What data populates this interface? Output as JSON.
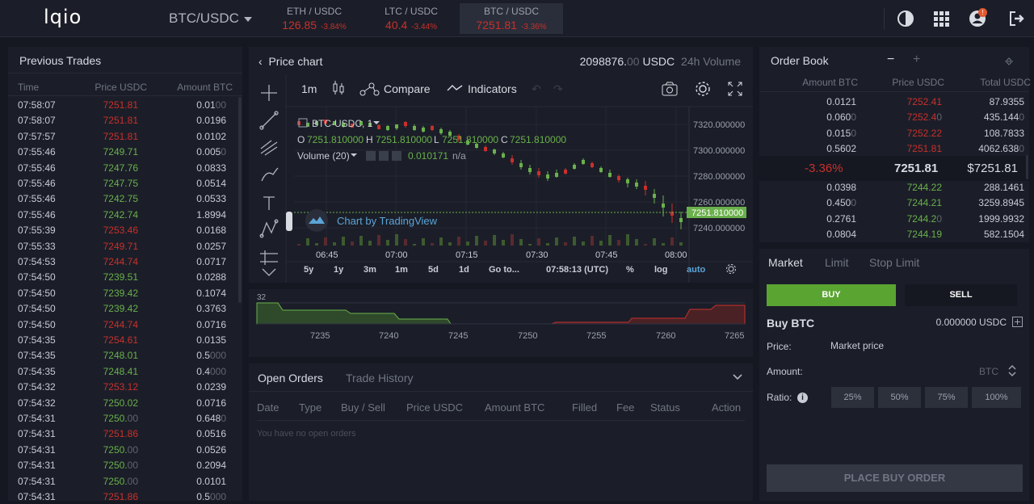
{
  "header": {
    "logo": "lqio",
    "pair": "BTC/USDC",
    "markets": [
      {
        "name": "ETH / USDC",
        "price": "126.85",
        "change": "-3.84%"
      },
      {
        "name": "LTC / USDC",
        "price": "40.4",
        "change": "-3.44%"
      },
      {
        "name": "BTC / USDC",
        "price": "7251.81",
        "change": "-3.36%"
      }
    ],
    "notification_count": "!"
  },
  "trades": {
    "title": "Previous Trades",
    "headers": [
      "Time",
      "Price USDC",
      "Amount BTC"
    ],
    "rows": [
      {
        "time": "07:58:07",
        "price": "7251.81",
        "dir": "red",
        "amt": "0.01",
        "amt_dim": "00"
      },
      {
        "time": "07:58:07",
        "price": "7251.81",
        "dir": "red",
        "amt": "0.0196",
        "amt_dim": ""
      },
      {
        "time": "07:57:57",
        "price": "7251.81",
        "dir": "red",
        "amt": "0.0102",
        "amt_dim": ""
      },
      {
        "time": "07:55:46",
        "price": "7249.71",
        "dir": "green",
        "amt": "0.005",
        "amt_dim": "0"
      },
      {
        "time": "07:55:46",
        "price": "7247.76",
        "dir": "green",
        "amt": "0.0833",
        "amt_dim": ""
      },
      {
        "time": "07:55:46",
        "price": "7247.75",
        "dir": "green",
        "amt": "0.0514",
        "amt_dim": ""
      },
      {
        "time": "07:55:46",
        "price": "7242.75",
        "dir": "green",
        "amt": "0.0533",
        "amt_dim": ""
      },
      {
        "time": "07:55:46",
        "price": "7242.74",
        "dir": "green",
        "amt": "1.8994",
        "amt_dim": ""
      },
      {
        "time": "07:55:39",
        "price": "7253.46",
        "dir": "red",
        "amt": "0.0168",
        "amt_dim": ""
      },
      {
        "time": "07:55:33",
        "price": "7249.71",
        "dir": "red",
        "amt": "0.0257",
        "amt_dim": ""
      },
      {
        "time": "07:54:53",
        "price": "7244.74",
        "dir": "red",
        "amt": "0.0717",
        "amt_dim": ""
      },
      {
        "time": "07:54:50",
        "price": "7239.51",
        "dir": "green",
        "amt": "0.0288",
        "amt_dim": ""
      },
      {
        "time": "07:54:50",
        "price": "7239.42",
        "dir": "green",
        "amt": "0.1074",
        "amt_dim": ""
      },
      {
        "time": "07:54:50",
        "price": "7239.42",
        "dir": "green",
        "amt": "0.3763",
        "amt_dim": ""
      },
      {
        "time": "07:54:50",
        "price": "7244.74",
        "dir": "red",
        "amt": "0.0716",
        "amt_dim": ""
      },
      {
        "time": "07:54:35",
        "price": "7254.61",
        "dir": "red",
        "amt": "0.0135",
        "amt_dim": ""
      },
      {
        "time": "07:54:35",
        "price": "7248.01",
        "dir": "green",
        "amt": "0.5",
        "amt_dim": "000"
      },
      {
        "time": "07:54:35",
        "price": "7248.41",
        "dir": "green",
        "amt": "0.4",
        "amt_dim": "000"
      },
      {
        "time": "07:54:32",
        "price": "7253.12",
        "dir": "red",
        "amt": "0.0239",
        "amt_dim": ""
      },
      {
        "time": "07:54:32",
        "price": "7250.02",
        "dir": "green",
        "amt": "0.0716",
        "amt_dim": ""
      },
      {
        "time": "07:54:31",
        "price": "7250.",
        "dir": "green",
        "amt": "0.648",
        "amt_dim": "0",
        "pdim": "00"
      },
      {
        "time": "07:54:31",
        "price": "7251.86",
        "dir": "red",
        "amt": "0.0516",
        "amt_dim": ""
      },
      {
        "time": "07:54:31",
        "price": "7250.",
        "dir": "green",
        "amt": "0.0526",
        "amt_dim": "",
        "pdim": "00"
      },
      {
        "time": "07:54:31",
        "price": "7250.",
        "dir": "green",
        "amt": "0.2094",
        "amt_dim": "",
        "pdim": "00"
      },
      {
        "time": "07:54:31",
        "price": "7250.",
        "dir": "green",
        "amt": "0.0101",
        "amt_dim": "",
        "pdim": "00"
      },
      {
        "time": "07:54:31",
        "price": "7251.86",
        "dir": "red",
        "amt": "0.5",
        "amt_dim": "000"
      }
    ]
  },
  "chart": {
    "back_title": "Price chart",
    "volume_value": "2098876.",
    "volume_dim": "00",
    "volume_unit": "USDC",
    "volume_label": "24h Volume",
    "toolbar": {
      "interval": "1m",
      "compare": "Compare",
      "indicators": "Indicators"
    },
    "symbol": "BTC-USDC, 1",
    "ohlc": {
      "o": "7251.810000",
      "h": "7251.810000",
      "l": "7251.810000",
      "c": "7251.810000"
    },
    "volume_ind": "Volume (20)",
    "volume_ind_val": "0.010171",
    "volume_ind_na": "n/a",
    "watermark": "Chart by TradingView",
    "price_labels": [
      "7320.000000",
      "7300.000000",
      "7280.000000",
      "7260.000000",
      "7240.000000"
    ],
    "current_price": "7251.810000",
    "time_labels": [
      "06:45",
      "07:00",
      "07:15",
      "07:30",
      "07:45",
      "08:00"
    ],
    "ranges": [
      "5y",
      "1y",
      "3m",
      "1m",
      "5d",
      "1d",
      "Go to..."
    ],
    "clock": "07:58:13 (UTC)",
    "pct": "%",
    "log": "log",
    "auto": "auto"
  },
  "depth": {
    "top_label": "32",
    "x_labels": [
      "7235",
      "7240",
      "7245",
      "7250",
      "7255",
      "7260",
      "7265"
    ]
  },
  "orders": {
    "tabs": [
      "Open Orders",
      "Trade History"
    ],
    "headers": [
      "Date",
      "Type",
      "Buy / Sell",
      "Price USDC",
      "Amount BTC",
      "Filled",
      "Fee",
      "Status",
      "Action"
    ],
    "empty": "You have no open orders"
  },
  "orderbook": {
    "title": "Order Book",
    "minus": "−",
    "plus": "+",
    "headers": [
      "Amount BTC",
      "Price USDC",
      "Total USDC"
    ],
    "asks": [
      {
        "amt": "0.0121",
        "price": "7252.41",
        "total": "87.9355"
      },
      {
        "amt": "0.060",
        "amt_dim": "0",
        "price": "7252.4",
        "price_dim": "0",
        "total": "435.144",
        "total_dim": "0"
      },
      {
        "amt": "0.015",
        "amt_dim": "0",
        "price": "7252.22",
        "total": "108.7833"
      },
      {
        "amt": "0.5602",
        "price": "7251.81",
        "total": "4062.638",
        "total_dim": "0"
      }
    ],
    "spread": {
      "change": "-3.36%",
      "last": "7251.81",
      "usd": "$7251.81"
    },
    "bids": [
      {
        "amt": "0.0398",
        "price": "7244.22",
        "total": "288.1461"
      },
      {
        "amt": "0.450",
        "amt_dim": "0",
        "price": "7244.21",
        "total": "3259.8945"
      },
      {
        "amt": "0.2761",
        "price": "7244.2",
        "price_dim": "0",
        "total": "1999.9932"
      },
      {
        "amt": "0.0804",
        "price": "7244.19",
        "total": "582.1504"
      }
    ]
  },
  "form": {
    "tabs": [
      "Market",
      "Limit",
      "Stop Limit"
    ],
    "buy": "BUY",
    "sell": "SELL",
    "title": "Buy BTC",
    "balance": "0.000000 USDC",
    "price_label": "Price:",
    "price_value": "Market price",
    "amount_label": "Amount:",
    "amount_unit": "BTC",
    "ratio_label": "Ratio:",
    "ratios": [
      "25%",
      "50%",
      "75%",
      "100%"
    ],
    "submit": "PLACE BUY ORDER"
  },
  "colors": {
    "green": "#6ab04c",
    "red": "#c9302c",
    "bg": "#151821",
    "panel": "#1b1e28"
  }
}
